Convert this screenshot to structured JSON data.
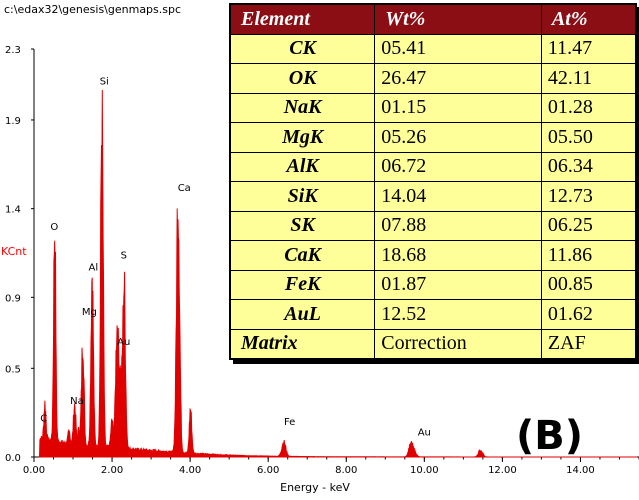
{
  "file_path": "c:\\edax32\\genesis\\genmaps.spc",
  "panel_label": "(B)",
  "chart_data": {
    "type": "line",
    "title": "",
    "xlabel": "Energy - keV",
    "ylabel": "KCnt",
    "xlim": [
      0,
      15.5
    ],
    "ylim": [
      0,
      2.3
    ],
    "x_ticks": [
      "0.00",
      "2.00",
      "4.00",
      "6.00",
      "8.00",
      "10.00",
      "12.00",
      "14.00"
    ],
    "x_tick_values": [
      0,
      2,
      4,
      6,
      8,
      10,
      12,
      14
    ],
    "y_ticks": [
      "0.0",
      "0.5",
      "0.9",
      "1.4",
      "1.9",
      "2.3"
    ],
    "y_tick_values": [
      0,
      0.5,
      0.9,
      1.4,
      1.9,
      2.3
    ],
    "series_color": "#e00000",
    "peaks": [
      {
        "label": "C",
        "energy": 0.28,
        "height": 0.2
      },
      {
        "label": "O",
        "energy": 0.53,
        "height": 1.2
      },
      {
        "label": "Na",
        "energy": 1.04,
        "height": 0.22
      },
      {
        "label": "Mg",
        "energy": 1.25,
        "height": 0.6
      },
      {
        "label": "Al",
        "energy": 1.49,
        "height": 0.98
      },
      {
        "label": "Si",
        "energy": 1.74,
        "height": 1.84
      },
      {
        "label": "Au",
        "energy": 2.12,
        "height": 0.55
      },
      {
        "label": "S",
        "energy": 2.31,
        "height": 0.88
      },
      {
        "label": "Ca",
        "energy": 3.69,
        "height": 1.45
      },
      {
        "label": "Fe",
        "energy": 6.4,
        "height": 0.08
      },
      {
        "label": "Au",
        "energy": 9.71,
        "height": 0.04
      }
    ],
    "peak_label_positions": [
      {
        "label": "C",
        "energy": 0.25,
        "y": 0.2
      },
      {
        "label": "O",
        "energy": 0.52,
        "y": 1.28
      },
      {
        "label": "Na",
        "energy": 1.1,
        "y": 0.3
      },
      {
        "label": "Mg",
        "energy": 1.42,
        "y": 0.8
      },
      {
        "label": "Al",
        "energy": 1.52,
        "y": 1.05
      },
      {
        "label": "Si",
        "energy": 1.8,
        "y": 2.1
      },
      {
        "label": "Au",
        "energy": 2.3,
        "y": 0.63
      },
      {
        "label": "S",
        "energy": 2.3,
        "y": 1.12
      },
      {
        "label": "Ca",
        "energy": 3.85,
        "y": 1.5
      },
      {
        "label": "Fe",
        "energy": 6.55,
        "y": 0.18
      },
      {
        "label": "Au",
        "energy": 10.0,
        "y": 0.12
      }
    ]
  },
  "table": {
    "headers": [
      "Element",
      "Wt%",
      "At%"
    ],
    "rows": [
      [
        "CK",
        "05.41",
        "11.47"
      ],
      [
        "OK",
        "26.47",
        "42.11"
      ],
      [
        "NaK",
        "01.15",
        "01.28"
      ],
      [
        "MgK",
        "05.26",
        "05.50"
      ],
      [
        "AlK",
        "06.72",
        "06.34"
      ],
      [
        "SiK",
        "14.04",
        "12.73"
      ],
      [
        "SK",
        "07.88",
        "06.25"
      ],
      [
        "CaK",
        "18.68",
        "11.86"
      ],
      [
        "FeK",
        "01.87",
        "00.85"
      ],
      [
        "AuL",
        "12.52",
        "01.62"
      ]
    ],
    "matrix_row": [
      "Matrix",
      "Correction",
      "ZAF"
    ]
  }
}
